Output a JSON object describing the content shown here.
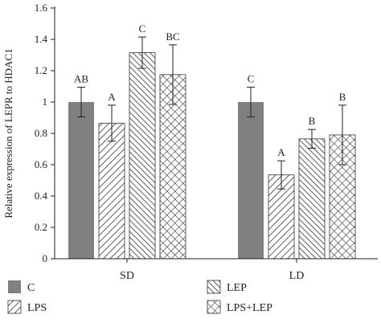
{
  "chart_data": {
    "type": "bar",
    "title": "",
    "ylabel": "Relative expression of LEPR to HDAC1",
    "xlabel": "",
    "ylim": [
      0,
      1.6
    ],
    "yticks": [
      "0",
      "0.2",
      "0.4",
      "0.6",
      "0.8",
      "1",
      "1.2",
      "1.4",
      "1.6"
    ],
    "categories": [
      "SD",
      "LD"
    ],
    "series": [
      {
        "name": "C",
        "pattern": "solid",
        "values": [
          1.0,
          1.0
        ],
        "errors": [
          0.095,
          0.095
        ],
        "sig": [
          "AB",
          "C"
        ]
      },
      {
        "name": "LPS",
        "pattern": "diag-fwd",
        "values": [
          0.865,
          0.535
        ],
        "errors": [
          0.115,
          0.09
        ],
        "sig": [
          "A",
          "A"
        ]
      },
      {
        "name": "LEP",
        "pattern": "diag-back",
        "values": [
          1.315,
          0.765
        ],
        "errors": [
          0.1,
          0.06
        ],
        "sig": [
          "C",
          "B"
        ]
      },
      {
        "name": "LPS+LEP",
        "pattern": "cross",
        "values": [
          1.175,
          0.79
        ],
        "errors": [
          0.19,
          0.19
        ],
        "sig": [
          "BC",
          "B"
        ]
      }
    ],
    "colors": {
      "solid": "#808080",
      "hatch": "#333333",
      "axis": "#222222"
    },
    "legend_placement": "bottom"
  }
}
